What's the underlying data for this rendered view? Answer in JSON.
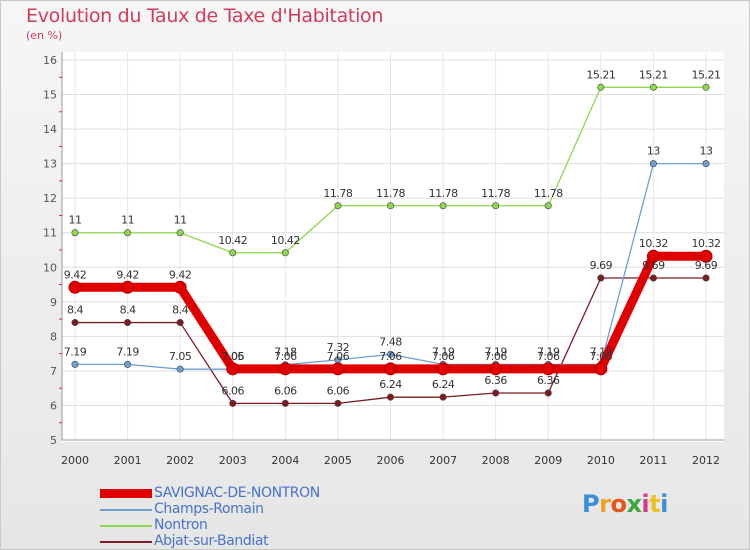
{
  "header": {
    "title": "Evolution du Taux de Taxe d'Habitation",
    "unit": "(en %)"
  },
  "logo": {
    "text": "Proxiti",
    "colors": [
      "#3a8fd8",
      "#f0a020",
      "#e8541e",
      "#3aa83a",
      "#d83a8a",
      "#f0c020",
      "#3a8fd8"
    ]
  },
  "chart_data": {
    "type": "line",
    "title": "Evolution du Taux de Taxe d'Habitation",
    "ylabel": "(en %)",
    "xlabel": "",
    "x": [
      "2000",
      "2001",
      "2002",
      "2003",
      "2004",
      "2005",
      "2006",
      "2007",
      "2008",
      "2009",
      "2010",
      "2011",
      "2012"
    ],
    "ylim": [
      5,
      16
    ],
    "yticks": [
      "5",
      "6",
      "7",
      "8",
      "9",
      "10",
      "11",
      "12",
      "13",
      "14",
      "15",
      "16"
    ],
    "grid": true,
    "legend_position": "bottom-left",
    "series": [
      {
        "name": "SAVIGNAC-DE-NONTRON",
        "color": "#e00000",
        "values": [
          9.42,
          9.42,
          9.42,
          7.06,
          7.06,
          7.06,
          7.06,
          7.06,
          7.06,
          7.06,
          7.06,
          10.32,
          10.32
        ],
        "labels": [
          "9.42",
          "9.42",
          "9.42",
          "7.06",
          "7.06",
          "7.06",
          "7.06",
          "7.06",
          "7.06",
          "7.06",
          "7.06",
          "10.32",
          "10.32"
        ]
      },
      {
        "name": "Champs-Romain",
        "color": "#6f9fd0",
        "values": [
          7.19,
          7.19,
          7.05,
          7.05,
          7.18,
          7.32,
          7.48,
          7.19,
          7.19,
          7.19,
          7.19,
          13,
          13
        ],
        "labels": [
          "7.19",
          "7.19",
          "7.05",
          "7.05",
          "7.18",
          "7.32",
          "7.48",
          "7.19",
          "7.19",
          "7.19",
          "7.19",
          "13",
          "13"
        ]
      },
      {
        "name": "Nontron",
        "color": "#8ed64e",
        "values": [
          11,
          11,
          11,
          10.42,
          10.42,
          11.78,
          11.78,
          11.78,
          11.78,
          11.78,
          15.21,
          15.21,
          15.21
        ],
        "labels": [
          "11",
          "11",
          "11",
          "10.42",
          "10.42",
          "11.78",
          "11.78",
          "11.78",
          "11.78",
          "11.78",
          "15.21",
          "15.21",
          "15.21"
        ]
      },
      {
        "name": "Abjat-sur-Bandiat",
        "color": "#7a1c22",
        "values": [
          8.4,
          8.4,
          8.4,
          6.06,
          6.06,
          6.06,
          6.24,
          6.24,
          6.36,
          6.36,
          9.69,
          9.69,
          9.69
        ],
        "labels": [
          "8.4",
          "8.4",
          "8.4",
          "6.06",
          "6.06",
          "6.06",
          "6.24",
          "6.24",
          "6.36",
          "6.36",
          "9.69",
          "9.69",
          "9.69"
        ]
      }
    ]
  }
}
